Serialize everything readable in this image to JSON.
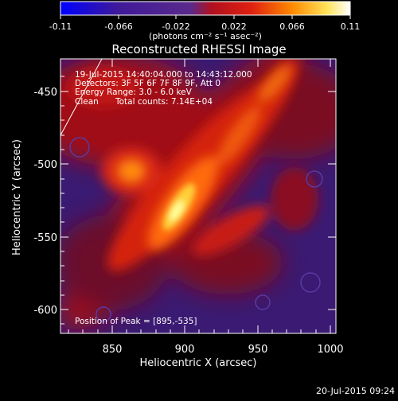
{
  "colorbar": {
    "tick_labels": [
      "-0.11",
      "-0.066",
      "-0.022",
      "0.022",
      "0.066",
      "0.11"
    ],
    "units": "(photons cm⁻² s⁻¹ asec⁻²)",
    "colors": [
      "#0000ff",
      "#3f1a98",
      "#5a2a8c",
      "#b01020",
      "#e02010",
      "#ff8a00",
      "#ffe45a",
      "#ffffff"
    ]
  },
  "title": "Reconstructed RHESSI Image",
  "info": {
    "time": "19-Jul-2015 14:40:04.000 to 14:43:12.000",
    "detectors": "Detectors: 3F 5F 6F 7F 8F 9F, Att 0",
    "energy": "Energy Range: 3.0 - 6.0 keV",
    "method": "Clean",
    "counts": "Total counts: 7.14E+04"
  },
  "peak": "Position of Peak = [895,-535]",
  "x_axis": {
    "label": "Heliocentric X (arcsec)",
    "ticks": [
      "850",
      "900",
      "950",
      "1000"
    ]
  },
  "y_axis": {
    "label": "Heliocentric Y (arcsec)",
    "ticks": [
      "-450",
      "-500",
      "-550",
      "-600"
    ]
  },
  "footer_timestamp": "20-Jul-2015 09:24"
}
